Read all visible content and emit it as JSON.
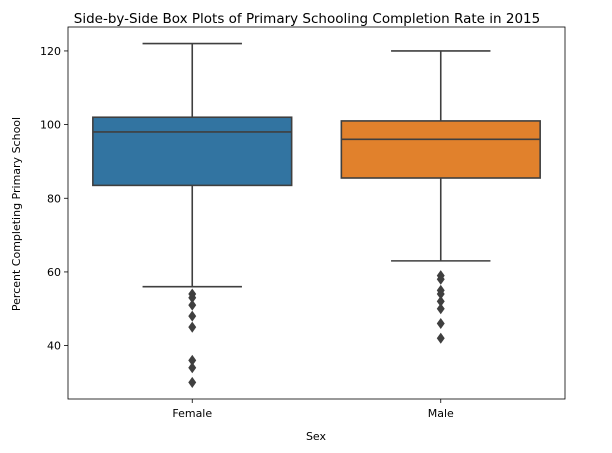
{
  "chart_data": {
    "type": "box",
    "title": "Side-by-Side Box Plots of Primary Schooling Completion Rate in 2015",
    "xlabel": "Sex",
    "ylabel": "Percent Completing Primary School",
    "ylim": [
      25.5,
      126.5
    ],
    "yticks": [
      40,
      60,
      80,
      100,
      120
    ],
    "grid": false,
    "categories": [
      "Female",
      "Male"
    ],
    "colors": [
      "#3274a1",
      "#e1812c"
    ],
    "edge_color": "#3f3f3f",
    "boxes": [
      {
        "category": "Female",
        "whisker_low": 56,
        "q1": 83.5,
        "median": 98,
        "q3": 102,
        "whisker_high": 122,
        "outliers": [
          54,
          53,
          51,
          48,
          45,
          36,
          34,
          30
        ]
      },
      {
        "category": "Male",
        "whisker_low": 63,
        "q1": 85.5,
        "median": 96,
        "q3": 101,
        "whisker_high": 120,
        "outliers": [
          59,
          58,
          55,
          54,
          52,
          50,
          46,
          42
        ]
      }
    ]
  }
}
